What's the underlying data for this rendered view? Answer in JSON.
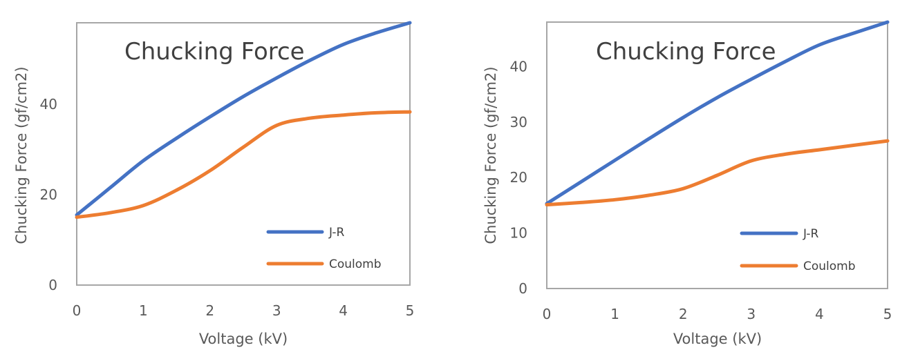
{
  "chart_data": [
    {
      "type": "line",
      "title": "Chucking Force",
      "xlabel": "Voltage (kV)",
      "ylabel": "Chucking Force (gf/cm2)",
      "x_ticks": [
        "0",
        "1",
        "2",
        "3",
        "4",
        "5"
      ],
      "y_ticks": [
        "0",
        "20",
        "40"
      ],
      "xlim": [
        0,
        5
      ],
      "ylim": [
        0,
        58
      ],
      "grid": false,
      "legend_position": "bottom-right",
      "x": [
        0,
        0.5,
        1,
        1.5,
        2,
        2.5,
        3,
        3.5,
        4,
        4.5,
        5
      ],
      "series": [
        {
          "name": "J-R",
          "color": "#4472C4",
          "values": [
            15.5,
            21.5,
            27.5,
            32.5,
            37.2,
            41.7,
            45.8,
            49.7,
            53.2,
            55.8,
            58
          ]
        },
        {
          "name": "Coulomb",
          "color": "#ED7D31",
          "values": [
            15,
            16,
            17.6,
            21,
            25.3,
            30.5,
            35.3,
            36.9,
            37.6,
            38.1,
            38.3
          ]
        }
      ]
    },
    {
      "type": "line",
      "title": "Chucking Force",
      "xlabel": "Voltage (kV)",
      "ylabel": "Chucking Force (gf/cm2)",
      "x_ticks": [
        "0",
        "1",
        "2",
        "3",
        "4",
        "5"
      ],
      "y_ticks": [
        "0",
        "10",
        "20",
        "30",
        "40"
      ],
      "xlim": [
        0,
        5
      ],
      "ylim": [
        0,
        48
      ],
      "grid": false,
      "legend_position": "bottom-right",
      "x": [
        0,
        0.5,
        1,
        1.5,
        2,
        2.5,
        3,
        3.5,
        4,
        4.5,
        5
      ],
      "series": [
        {
          "name": "J-R",
          "color": "#4472C4",
          "values": [
            15.3,
            19.2,
            23.1,
            27,
            30.8,
            34.4,
            37.7,
            40.9,
            43.9,
            46,
            48
          ]
        },
        {
          "name": "Coulomb",
          "color": "#ED7D31",
          "values": [
            15.1,
            15.5,
            16,
            16.8,
            18,
            20.4,
            23,
            24.2,
            25,
            25.8,
            26.6
          ]
        }
      ]
    }
  ]
}
